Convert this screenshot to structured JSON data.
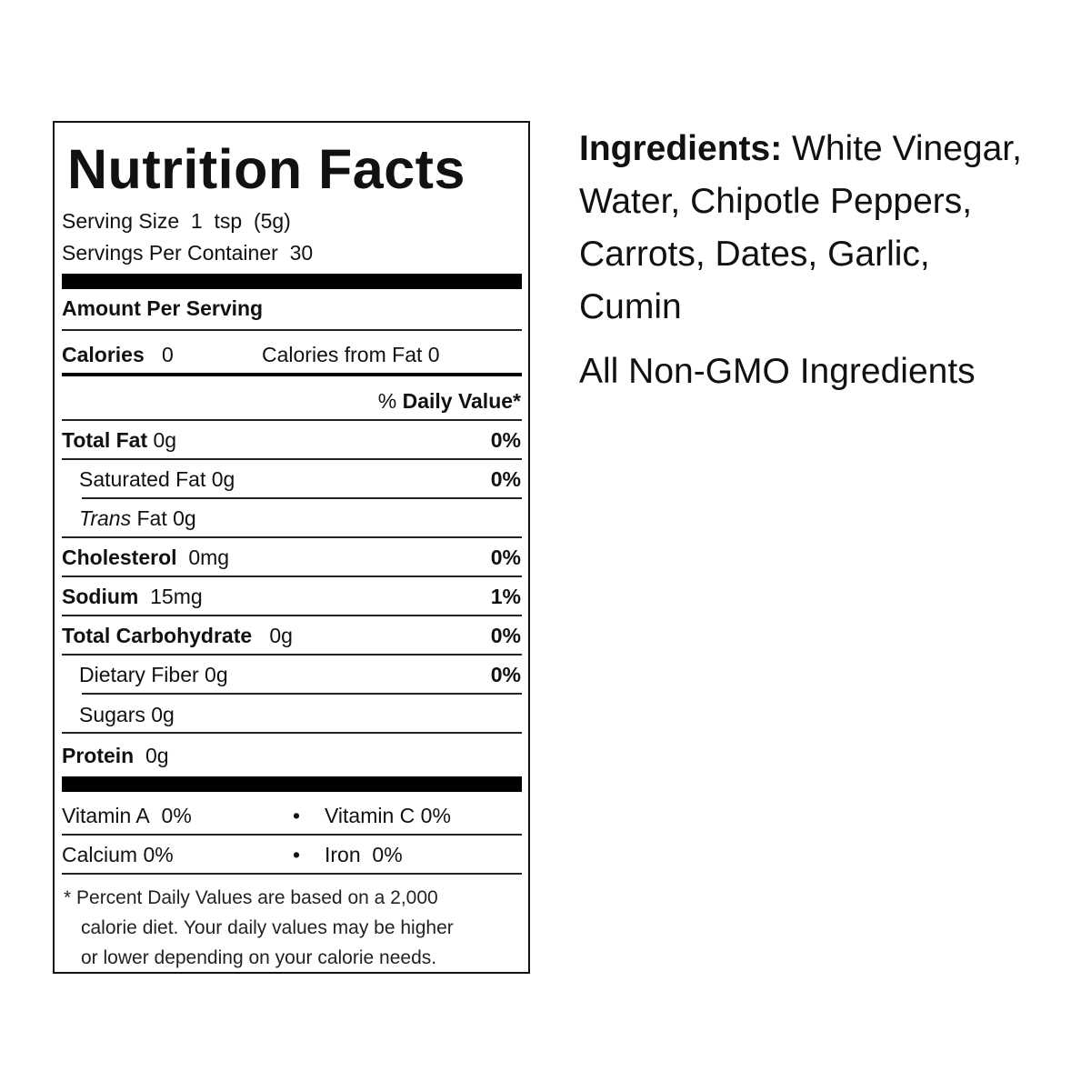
{
  "nutrition": {
    "title": "Nutrition Facts",
    "serving_size_label": "Serving Size",
    "serving_size_value": "1  tsp  (5g)",
    "servings_label": "Servings Per Container",
    "servings_value": "30",
    "amount_per_serving": "Amount Per Serving",
    "calories_label": "Calories",
    "calories_value": "0",
    "calories_fat_label": "Calories from Fat",
    "calories_fat_value": "0",
    "daily_value_pct": "%",
    "daily_value_label": "Daily Value*",
    "rows": [
      {
        "label": "Total Fat",
        "amount": "0g",
        "dv": "0%"
      },
      {
        "label": "Saturated Fat",
        "amount": "0g",
        "dv": "0%"
      },
      {
        "label": "Trans",
        "amount": "Fat 0g",
        "dv": ""
      },
      {
        "label": "Cholesterol",
        "amount": "0mg",
        "dv": "0%"
      },
      {
        "label": "Sodium",
        "amount": "15mg",
        "dv": "1%"
      },
      {
        "label": "Total Carbohydrate",
        "amount": "0g",
        "dv": "0%"
      },
      {
        "label": "Dietary Fiber",
        "amount": "0g",
        "dv": "0%"
      },
      {
        "label": "Sugars",
        "amount": "0g",
        "dv": ""
      },
      {
        "label": "Protein",
        "amount": "0g",
        "dv": ""
      }
    ],
    "vitamins": [
      {
        "label": "Vitamin A",
        "value": "0%"
      },
      {
        "label": "Vitamin C",
        "value": "0%"
      },
      {
        "label": "Calcium",
        "value": "0%"
      },
      {
        "label": "Iron",
        "value": "0%"
      }
    ],
    "bullet": "•",
    "footnote": [
      "* Percent Daily Values are based on a 2,000",
      "calorie diet. Your daily values may be higher",
      "or lower depending on your calorie needs."
    ]
  },
  "ingredients": {
    "label": "Ingredients:",
    "lines": [
      "White Vinegar,",
      "Water, Chipotle Peppers,",
      "Carrots, Dates, Garlic,",
      "Cumin"
    ],
    "non_gmo": "All Non-GMO Ingredients"
  }
}
